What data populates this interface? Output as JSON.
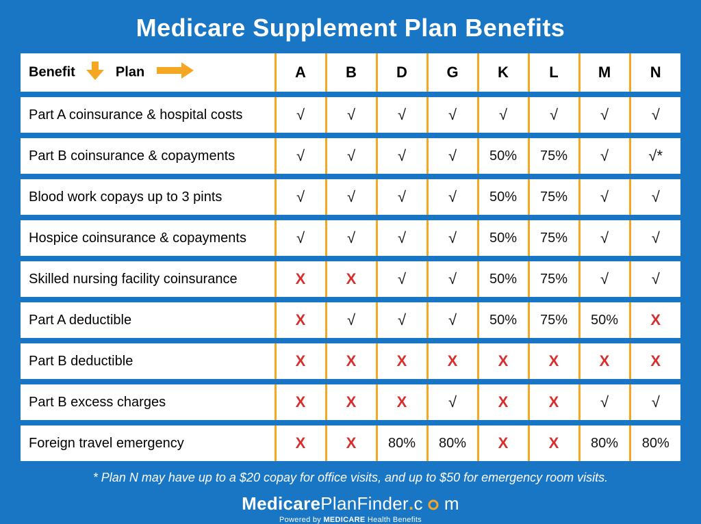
{
  "title": "Medicare Supplement Plan Benefits",
  "header": {
    "benefit_label": "Benefit",
    "plan_label": "Plan",
    "arrow_color": "#f5a623",
    "plans": [
      "A",
      "B",
      "D",
      "G",
      "K",
      "L",
      "M",
      "N"
    ]
  },
  "check_glyph": "√",
  "cross_glyph": "X",
  "rows": [
    {
      "benefit": "Part A coinsurance & hospital costs",
      "cells": [
        {
          "t": "check"
        },
        {
          "t": "check"
        },
        {
          "t": "check"
        },
        {
          "t": "check"
        },
        {
          "t": "check"
        },
        {
          "t": "check"
        },
        {
          "t": "check"
        },
        {
          "t": "check"
        }
      ]
    },
    {
      "benefit": "Part B coinsurance & copayments",
      "cells": [
        {
          "t": "check"
        },
        {
          "t": "check"
        },
        {
          "t": "check"
        },
        {
          "t": "check"
        },
        {
          "t": "pct",
          "v": "50%"
        },
        {
          "t": "pct",
          "v": "75%"
        },
        {
          "t": "check"
        },
        {
          "t": "check",
          "suffix": "*"
        }
      ]
    },
    {
      "benefit": "Blood work copays up to 3 pints",
      "cells": [
        {
          "t": "check"
        },
        {
          "t": "check"
        },
        {
          "t": "check"
        },
        {
          "t": "check"
        },
        {
          "t": "pct",
          "v": "50%"
        },
        {
          "t": "pct",
          "v": "75%"
        },
        {
          "t": "check"
        },
        {
          "t": "check"
        }
      ]
    },
    {
      "benefit": "Hospice coinsurance & copayments",
      "cells": [
        {
          "t": "check"
        },
        {
          "t": "check"
        },
        {
          "t": "check"
        },
        {
          "t": "check"
        },
        {
          "t": "pct",
          "v": "50%"
        },
        {
          "t": "pct",
          "v": "75%"
        },
        {
          "t": "check"
        },
        {
          "t": "check"
        }
      ]
    },
    {
      "benefit": "Skilled nursing facility coinsurance",
      "cells": [
        {
          "t": "cross"
        },
        {
          "t": "cross"
        },
        {
          "t": "check"
        },
        {
          "t": "check"
        },
        {
          "t": "pct",
          "v": "50%"
        },
        {
          "t": "pct",
          "v": "75%"
        },
        {
          "t": "check"
        },
        {
          "t": "check"
        }
      ]
    },
    {
      "benefit": "Part A deductible",
      "cells": [
        {
          "t": "cross"
        },
        {
          "t": "check"
        },
        {
          "t": "check"
        },
        {
          "t": "check"
        },
        {
          "t": "pct",
          "v": "50%"
        },
        {
          "t": "pct",
          "v": "75%"
        },
        {
          "t": "pct",
          "v": "50%"
        },
        {
          "t": "cross"
        }
      ]
    },
    {
      "benefit": "Part B deductible",
      "cells": [
        {
          "t": "cross"
        },
        {
          "t": "cross"
        },
        {
          "t": "cross"
        },
        {
          "t": "cross"
        },
        {
          "t": "cross"
        },
        {
          "t": "cross"
        },
        {
          "t": "cross"
        },
        {
          "t": "cross"
        }
      ]
    },
    {
      "benefit": "Part B excess charges",
      "cells": [
        {
          "t": "cross"
        },
        {
          "t": "cross"
        },
        {
          "t": "cross"
        },
        {
          "t": "check"
        },
        {
          "t": "cross"
        },
        {
          "t": "cross"
        },
        {
          "t": "check"
        },
        {
          "t": "check"
        }
      ]
    },
    {
      "benefit": "Foreign travel emergency",
      "cells": [
        {
          "t": "cross"
        },
        {
          "t": "cross"
        },
        {
          "t": "pct",
          "v": "80%"
        },
        {
          "t": "pct",
          "v": "80%"
        },
        {
          "t": "cross"
        },
        {
          "t": "cross"
        },
        {
          "t": "pct",
          "v": "80%"
        },
        {
          "t": "pct",
          "v": "80%"
        }
      ]
    }
  ],
  "footnote": "* Plan N may have up to a $20 copay for office visits, and up to $50 for emergency room visits.",
  "brand": {
    "part1": "Medicare",
    "part2": "PlanFinder",
    "dot": ".",
    "part3": "c",
    "part4": "m",
    "sub_prefix": "Powered by ",
    "sub_bold": "MEDICARE",
    "sub_suffix": " Health Benefits"
  },
  "style": {
    "background_color": "#1976c5",
    "cell_background": "#ffffff",
    "divider_color": "#f5a623",
    "cross_color": "#d82e2e",
    "text_color": "#111111",
    "title_color": "#ffffff",
    "title_fontsize": 36,
    "header_fontsize": 22,
    "cell_fontsize": 20,
    "row_gap": 8,
    "plan_col_width": 74
  }
}
